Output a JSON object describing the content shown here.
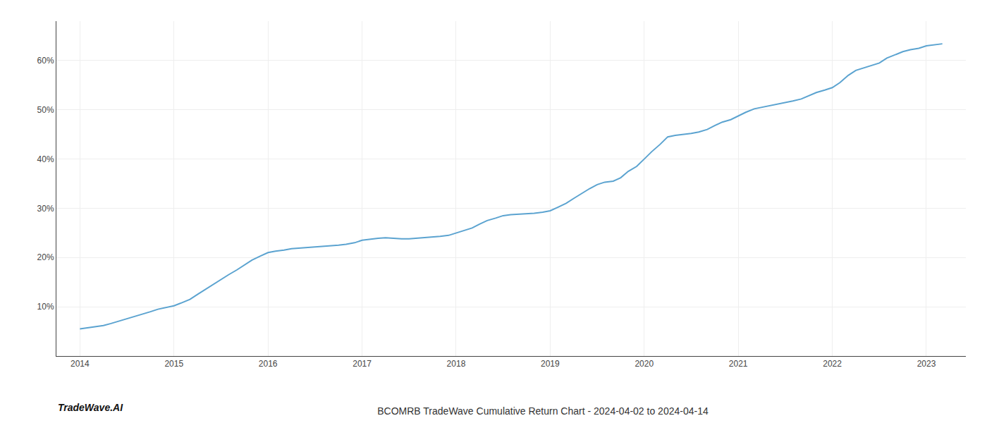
{
  "chart_data": {
    "type": "line",
    "title": "BCOMRB TradeWave Cumulative Return Chart - 2024-04-02 to 2024-04-14",
    "annotations": [
      "TradeWave.AI"
    ],
    "x": [
      2014.0,
      2014.08,
      2014.17,
      2014.25,
      2014.33,
      2014.42,
      2014.5,
      2014.58,
      2014.67,
      2014.75,
      2014.83,
      2014.92,
      2015.0,
      2015.08,
      2015.17,
      2015.25,
      2015.33,
      2015.42,
      2015.5,
      2015.58,
      2015.67,
      2015.75,
      2015.83,
      2015.92,
      2016.0,
      2016.08,
      2016.17,
      2016.25,
      2016.33,
      2016.42,
      2016.5,
      2016.58,
      2016.67,
      2016.75,
      2016.83,
      2016.92,
      2017.0,
      2017.08,
      2017.17,
      2017.25,
      2017.33,
      2017.42,
      2017.5,
      2017.58,
      2017.67,
      2017.75,
      2017.83,
      2017.92,
      2018.0,
      2018.08,
      2018.17,
      2018.25,
      2018.33,
      2018.42,
      2018.5,
      2018.58,
      2018.67,
      2018.75,
      2018.83,
      2018.92,
      2019.0,
      2019.08,
      2019.17,
      2019.25,
      2019.33,
      2019.42,
      2019.5,
      2019.58,
      2019.67,
      2019.75,
      2019.83,
      2019.92,
      2020.0,
      2020.08,
      2020.17,
      2020.25,
      2020.33,
      2020.42,
      2020.5,
      2020.58,
      2020.67,
      2020.75,
      2020.83,
      2020.92,
      2021.0,
      2021.08,
      2021.17,
      2021.25,
      2021.33,
      2021.42,
      2021.5,
      2021.58,
      2021.67,
      2021.75,
      2021.83,
      2021.92,
      2022.0,
      2022.08,
      2022.17,
      2022.25,
      2022.33,
      2022.42,
      2022.5,
      2022.58,
      2022.67,
      2022.75,
      2022.83,
      2022.92,
      2023.0,
      2023.08,
      2023.17
    ],
    "values": [
      5.5,
      5.7,
      5.9,
      6.2,
      6.6,
      7.1,
      7.6,
      8.0,
      8.5,
      9.0,
      9.5,
      9.9,
      10.2,
      10.8,
      11.5,
      12.5,
      13.5,
      14.5,
      15.5,
      16.5,
      17.5,
      18.5,
      19.5,
      20.3,
      21.0,
      21.3,
      21.5,
      21.8,
      21.9,
      22.0,
      22.1,
      22.2,
      22.3,
      22.5,
      22.7,
      23.0,
      23.5,
      23.7,
      23.9,
      24.0,
      23.9,
      23.8,
      23.8,
      23.9,
      24.0,
      24.1,
      24.3,
      24.5,
      25.0,
      25.5,
      26.0,
      26.8,
      27.5,
      28.0,
      28.5,
      28.7,
      28.8,
      28.9,
      29.0,
      29.2,
      29.5,
      30.2,
      31.0,
      32.0,
      33.0,
      34.0,
      34.8,
      35.3,
      35.5,
      36.2,
      37.5,
      38.5,
      40.0,
      41.5,
      43.0,
      44.5,
      44.8,
      45.0,
      45.2,
      45.5,
      46.0,
      46.8,
      47.5,
      48.0,
      48.8,
      49.5,
      50.2,
      50.5,
      50.8,
      51.2,
      51.5,
      51.8,
      52.2,
      52.8,
      53.5,
      54.0,
      54.5,
      55.5,
      57.0,
      58.0,
      58.5,
      59.0,
      59.5,
      60.5,
      61.2,
      61.8,
      62.2,
      62.5,
      63.0,
      63.2,
      63.4
    ],
    "color": "#5ba3d0",
    "xlim": [
      2013.75,
      2023.42
    ],
    "ylim": [
      0,
      68
    ],
    "xticks": [
      2014,
      2015,
      2016,
      2017,
      2018,
      2019,
      2020,
      2021,
      2022,
      2023
    ],
    "yticks": [
      {
        "value": 10,
        "label": "10%"
      },
      {
        "value": 20,
        "label": "20%"
      },
      {
        "value": 30,
        "label": "30%"
      },
      {
        "value": 40,
        "label": "40%"
      },
      {
        "value": 50,
        "label": "50%"
      },
      {
        "value": 60,
        "label": "60%"
      }
    ],
    "grid": true
  }
}
